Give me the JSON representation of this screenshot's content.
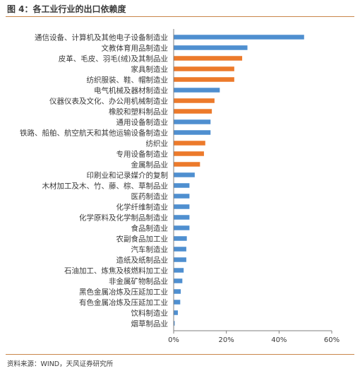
{
  "figure": {
    "title": "图 4：各工业行业的出口依赖度",
    "source": "资料来源：WIND，天风证券研究所"
  },
  "colors": {
    "blue": "#4f8fd0",
    "orange": "#ec7a2b",
    "rule": "#c9864b",
    "axis": "#7f7f7f"
  },
  "chart_data": {
    "type": "bar",
    "orientation": "horizontal",
    "title": "",
    "xlabel": "",
    "ylabel": "",
    "xlim": [
      0,
      60
    ],
    "xticks": [
      0,
      20,
      40,
      60
    ],
    "xtick_labels": [
      "0%",
      "20%",
      "40%",
      "60%"
    ],
    "value_unit": "%",
    "grid": false,
    "legend": "none",
    "categories": [
      "通信设备、计算机及其他电子设备制造业",
      "文教体育用品制造业",
      "皮革、毛皮、羽毛(绒)及其制品业",
      "家具制造业",
      "纺织服装、鞋、帽制造业",
      "电气机械及器材制造业",
      "仪器仪表及文化、办公用机械制造业",
      "橡胶和塑料制品业",
      "通用设备制造业",
      "铁路、船舶、航空航天和其他运输设备制造业",
      "纺织业",
      "专用设备制造业",
      "金属制品业",
      "印刷业和记录媒介的复制",
      "木材加工及木、竹、藤、棕、草制品业",
      "医药制造业",
      "化学纤维制造业",
      "化学原料及化学制品制造业",
      "食品制造业",
      "农副食品加工业",
      "汽车制造业",
      "造纸及纸制品业",
      "石油加工、炼焦及核燃料加工业",
      "非金属矿物制品业",
      "黑色金属冶炼及压延加工业",
      "有色金属冶炼及压延加工业",
      "饮料制造业",
      "烟草制品业"
    ],
    "values": [
      49.5,
      28.0,
      26.0,
      23.0,
      23.0,
      17.5,
      15.5,
      14.5,
      14.0,
      14.0,
      12.0,
      11.5,
      10.0,
      8.0,
      6.0,
      6.0,
      6.0,
      6.0,
      6.0,
      5.0,
      4.8,
      4.8,
      3.8,
      3.3,
      2.7,
      2.5,
      1.6,
      0.4
    ],
    "bar_colors": [
      "blue",
      "blue",
      "orange",
      "orange",
      "orange",
      "blue",
      "orange",
      "orange",
      "blue",
      "blue",
      "orange",
      "orange",
      "orange",
      "blue",
      "blue",
      "blue",
      "blue",
      "blue",
      "blue",
      "blue",
      "blue",
      "blue",
      "blue",
      "blue",
      "blue",
      "blue",
      "blue",
      "blue"
    ]
  }
}
